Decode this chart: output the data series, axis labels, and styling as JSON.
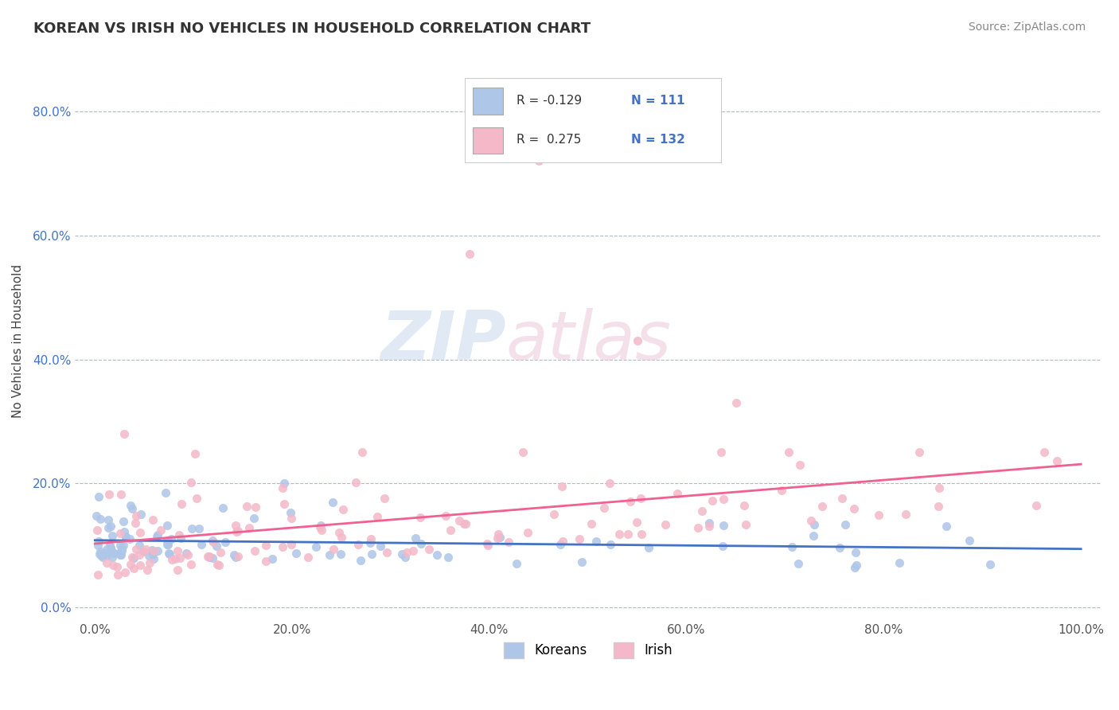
{
  "title": "KOREAN VS IRISH NO VEHICLES IN HOUSEHOLD CORRELATION CHART",
  "source": "Source: ZipAtlas.com",
  "ylabel": "No Vehicles in Household",
  "watermark_zip": "ZIP",
  "watermark_atlas": "atlas",
  "xlim": [
    -2.0,
    102.0
  ],
  "ylim": [
    -2.0,
    88.0
  ],
  "xtick_vals": [
    0,
    20,
    40,
    60,
    80,
    100
  ],
  "ytick_vals": [
    0,
    20,
    40,
    60,
    80
  ],
  "korean_color": "#aec6e8",
  "irish_color": "#f4b8c8",
  "korean_line_color": "#4472c4",
  "irish_line_color": "#f06090",
  "korean_R": -0.129,
  "korean_N": 111,
  "irish_R": 0.275,
  "irish_N": 132,
  "legend_label_korean": "Koreans",
  "legend_label_irish": "Irish",
  "background_color": "#ffffff",
  "grid_color": "#b0b8c8",
  "title_color": "#333333",
  "source_color": "#888888",
  "ylabel_color": "#444444",
  "ytick_color": "#4472c4",
  "xtick_color": "#555555"
}
